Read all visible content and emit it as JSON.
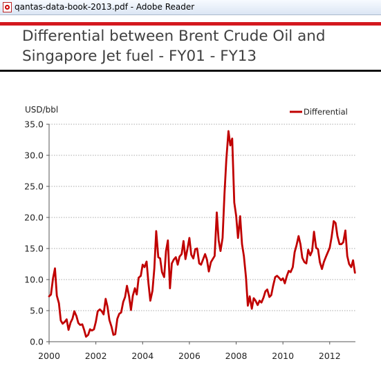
{
  "window": {
    "title": "qantas-data-book-2013.pdf - Adobe Reader",
    "icon": "pdf-icon"
  },
  "slide": {
    "title_line1": "Differential between Brent Crude Oil and",
    "title_line2": "Singapore Jet fuel - FY01 - FY13",
    "accent_color": "#d4181f"
  },
  "chart_data": {
    "type": "line",
    "title": "Differential between Brent Crude Oil and Singapore Jet fuel - FY01 - FY13",
    "ylabel": "USD/bbl",
    "xlabel": "",
    "ylim": [
      0,
      35
    ],
    "xlim": [
      2000,
      2013.1
    ],
    "yticks": [
      "0.0",
      "5.0",
      "10.0",
      "15.0",
      "20.0",
      "25.0",
      "30.0",
      "35.0"
    ],
    "xticks": [
      "2000",
      "2002",
      "2004",
      "2006",
      "2008",
      "2010",
      "2012"
    ],
    "grid": "horizontal dotted",
    "legend": "top-right",
    "series": [
      {
        "name": "Differential",
        "color": "#c00000",
        "x": [
          2000.0,
          2000.08,
          2000.17,
          2000.25,
          2000.33,
          2000.42,
          2000.5,
          2000.58,
          2000.67,
          2000.75,
          2000.83,
          2000.92,
          2001.0,
          2001.08,
          2001.17,
          2001.25,
          2001.33,
          2001.42,
          2001.5,
          2001.58,
          2001.67,
          2001.75,
          2001.83,
          2001.92,
          2002.0,
          2002.08,
          2002.17,
          2002.25,
          2002.33,
          2002.42,
          2002.5,
          2002.58,
          2002.67,
          2002.75,
          2002.83,
          2002.92,
          2003.0,
          2003.08,
          2003.17,
          2003.25,
          2003.33,
          2003.42,
          2003.5,
          2003.58,
          2003.67,
          2003.75,
          2003.83,
          2003.92,
          2004.0,
          2004.08,
          2004.17,
          2004.25,
          2004.33,
          2004.42,
          2004.5,
          2004.58,
          2004.67,
          2004.75,
          2004.83,
          2004.92,
          2005.0,
          2005.08,
          2005.17,
          2005.25,
          2005.33,
          2005.42,
          2005.5,
          2005.58,
          2005.67,
          2005.75,
          2005.83,
          2005.92,
          2006.0,
          2006.08,
          2006.17,
          2006.25,
          2006.33,
          2006.42,
          2006.5,
          2006.58,
          2006.67,
          2006.75,
          2006.83,
          2006.92,
          2007.0,
          2007.08,
          2007.17,
          2007.25,
          2007.33,
          2007.42,
          2007.5,
          2007.58,
          2007.67,
          2007.75,
          2007.83,
          2007.92,
          2008.0,
          2008.08,
          2008.17,
          2008.25,
          2008.33,
          2008.42,
          2008.5,
          2008.58,
          2008.67,
          2008.75,
          2008.83,
          2008.92,
          2009.0,
          2009.08,
          2009.17,
          2009.25,
          2009.33,
          2009.42,
          2009.5,
          2009.58,
          2009.67,
          2009.75,
          2009.83,
          2009.92,
          2010.0,
          2010.08,
          2010.17,
          2010.25,
          2010.33,
          2010.42,
          2010.5,
          2010.58,
          2010.67,
          2010.75,
          2010.83,
          2010.92,
          2011.0,
          2011.08,
          2011.17,
          2011.25,
          2011.33,
          2011.42,
          2011.5,
          2011.58,
          2011.67,
          2011.75,
          2011.83,
          2011.92,
          2012.0,
          2012.08,
          2012.17,
          2012.25,
          2012.33,
          2012.42,
          2012.5,
          2012.58,
          2012.67,
          2012.75,
          2012.83,
          2012.92,
          2013.0,
          2013.08
        ],
        "values": [
          7.3,
          7.6,
          10.2,
          11.8,
          7.4,
          6.2,
          3.4,
          2.9,
          3.2,
          3.6,
          1.9,
          3.1,
          3.7,
          4.9,
          4.1,
          3.0,
          2.7,
          2.8,
          1.9,
          0.8,
          1.1,
          2.0,
          1.8,
          2.0,
          3.2,
          4.9,
          5.2,
          4.9,
          4.4,
          6.9,
          5.6,
          3.5,
          2.4,
          1.1,
          1.2,
          3.7,
          4.5,
          4.7,
          6.4,
          7.2,
          9.0,
          7.3,
          5.1,
          7.4,
          8.6,
          7.6,
          10.3,
          10.6,
          12.4,
          12.0,
          12.9,
          9.4,
          6.6,
          8.2,
          11.8,
          17.8,
          13.6,
          13.4,
          11.2,
          10.4,
          14.6,
          16.3,
          8.6,
          12.6,
          13.2,
          13.6,
          12.4,
          13.7,
          14.1,
          16.2,
          13.3,
          15.0,
          16.7,
          14.0,
          13.4,
          14.9,
          15.0,
          12.6,
          12.4,
          13.2,
          14.1,
          13.2,
          11.3,
          12.8,
          13.3,
          13.8,
          20.8,
          16.3,
          14.6,
          16.7,
          23.7,
          29.3,
          33.9,
          31.6,
          32.7,
          22.4,
          20.3,
          16.7,
          20.2,
          15.7,
          13.8,
          10.4,
          5.8,
          7.3,
          5.3,
          7.0,
          6.6,
          5.9,
          6.6,
          6.3,
          7.1,
          8.1,
          8.4,
          7.2,
          7.5,
          9.0,
          10.4,
          10.6,
          10.3,
          9.9,
          10.2,
          9.4,
          10.6,
          11.4,
          11.2,
          12.0,
          14.4,
          15.5,
          17.0,
          15.7,
          13.5,
          12.8,
          12.6,
          14.8,
          13.9,
          14.6,
          17.7,
          15.1,
          14.9,
          12.8,
          11.7,
          12.8,
          13.6,
          14.4,
          15.1,
          16.8,
          19.4,
          19.1,
          17.0,
          15.7,
          15.7,
          16.0,
          17.9,
          13.8,
          12.5,
          12.0,
          13.1,
          11.1
        ]
      }
    ]
  }
}
